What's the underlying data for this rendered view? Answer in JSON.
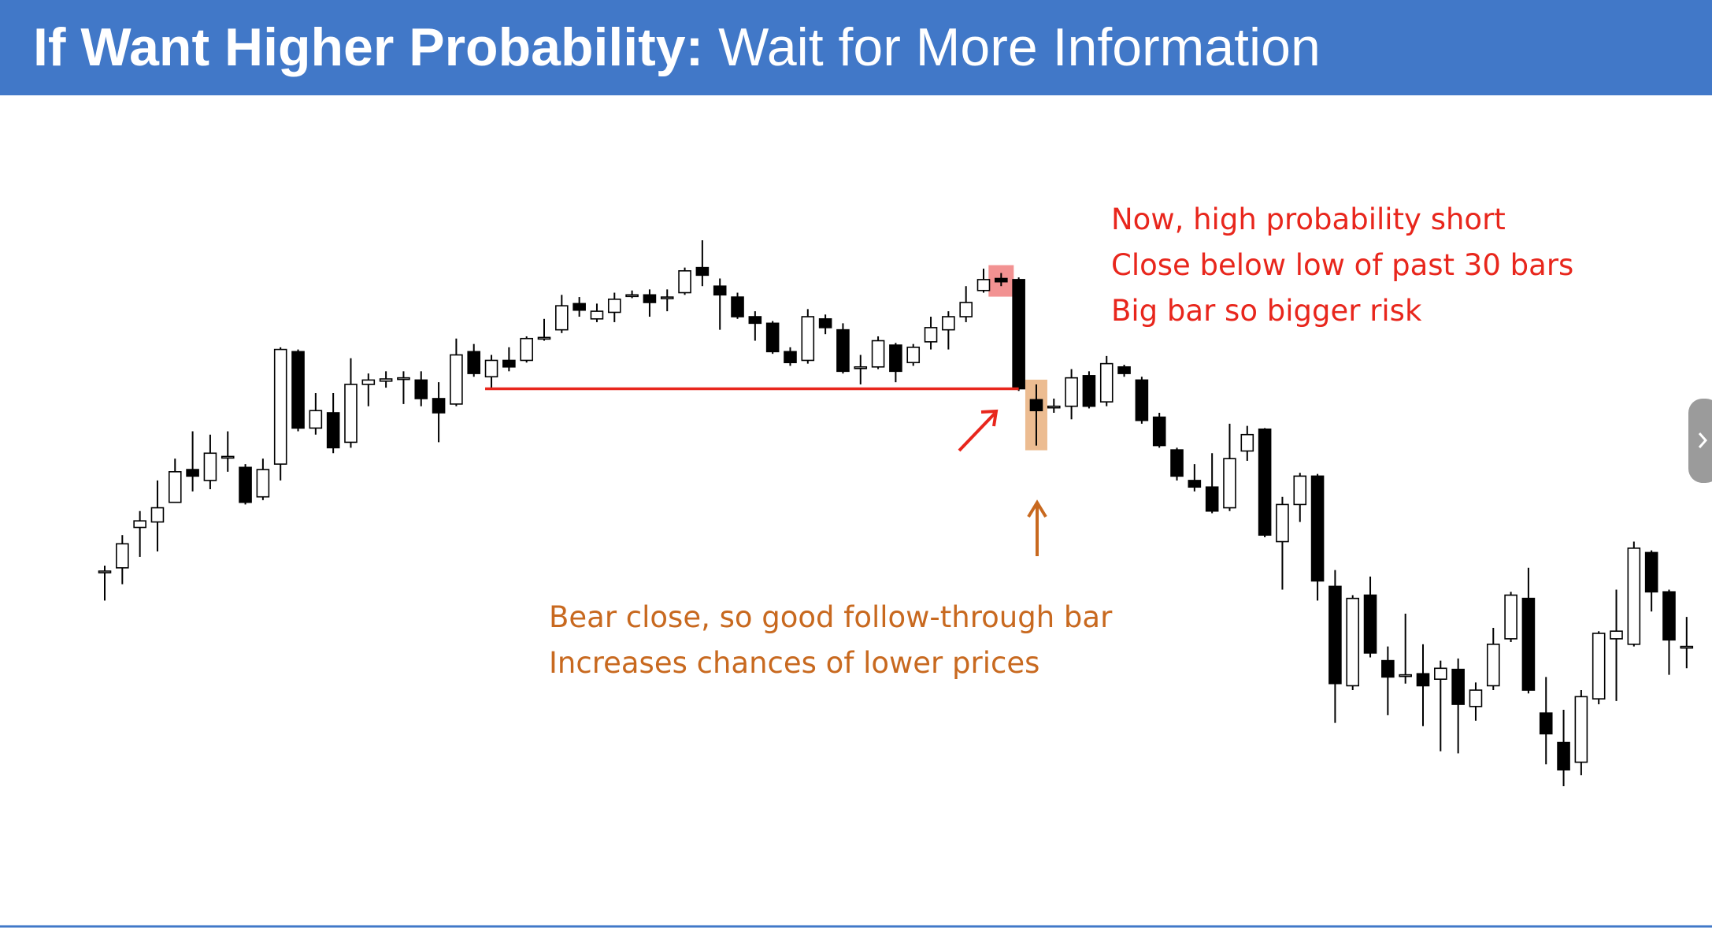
{
  "header": {
    "title_bold": "If Want Higher Probability:",
    "title_rest": "Wait for More Information"
  },
  "chart_data": {
    "type": "candlestick",
    "up_color": "#ffffff",
    "down_color": "#000000",
    "open": [
      277,
      280,
      317,
      322,
      340,
      370,
      360,
      382,
      372,
      345,
      375,
      478,
      408,
      422,
      395,
      448,
      451,
      454,
      452,
      435,
      430,
      478,
      455,
      470,
      470,
      490,
      498,
      522,
      508,
      514,
      530,
      530,
      528,
      532,
      555,
      538,
      528,
      510,
      504,
      478,
      470,
      508,
      498,
      464,
      464,
      484,
      468,
      487,
      498,
      510,
      534,
      545,
      544,
      434,
      428,
      428,
      456,
      432,
      464,
      452,
      418,
      388,
      360,
      354,
      335,
      387,
      407,
      304,
      338,
      364,
      263,
      172,
      255,
      195,
      182,
      183,
      178,
      187,
      153,
      172,
      215,
      252,
      147,
      120,
      102,
      160,
      215,
      210,
      294,
      258,
      208
    ],
    "high": [
      282,
      310,
      332,
      360,
      380,
      405,
      402,
      405,
      375,
      380,
      482,
      480,
      440,
      440,
      472,
      458,
      460,
      460,
      460,
      450,
      490,
      485,
      475,
      482,
      492,
      508,
      530,
      528,
      522,
      532,
      534,
      535,
      535,
      555,
      580,
      545,
      532,
      515,
      506,
      482,
      517,
      512,
      504,
      475,
      492,
      486,
      485,
      510,
      515,
      538,
      554,
      550,
      546,
      448,
      435,
      462,
      460,
      474,
      466,
      455,
      422,
      390,
      375,
      385,
      412,
      410,
      408,
      345,
      367,
      366,
      278,
      255,
      272,
      208,
      238,
      210,
      195,
      197,
      175,
      225,
      258,
      280,
      180,
      150,
      168,
      222,
      260,
      304,
      296,
      260,
      235
    ],
    "low": [
      250,
      265,
      290,
      295,
      340,
      350,
      352,
      368,
      338,
      342,
      360,
      405,
      402,
      385,
      390,
      428,
      445,
      430,
      428,
      395,
      428,
      455,
      445,
      460,
      468,
      488,
      495,
      510,
      505,
      505,
      527,
      510,
      515,
      530,
      538,
      498,
      508,
      488,
      476,
      465,
      467,
      494,
      458,
      448,
      462,
      450,
      465,
      480,
      480,
      505,
      532,
      538,
      442,
      392,
      422,
      416,
      426,
      428,
      455,
      412,
      390,
      360,
      350,
      330,
      332,
      378,
      308,
      260,
      322,
      250,
      138,
      168,
      198,
      145,
      174,
      135,
      112,
      110,
      140,
      168,
      212,
      165,
      100,
      80,
      90,
      155,
      158,
      208,
      240,
      182,
      188
    ],
    "close": [
      277,
      302,
      323,
      335,
      368,
      364,
      385,
      382,
      340,
      370,
      480,
      408,
      424,
      390,
      448,
      452,
      453,
      454,
      435,
      422,
      475,
      458,
      470,
      464,
      490,
      491,
      520,
      516,
      515,
      526,
      530,
      523,
      528,
      552,
      548,
      530,
      510,
      504,
      478,
      468,
      510,
      500,
      460,
      464,
      488,
      460,
      482,
      500,
      510,
      523,
      544,
      542,
      444,
      424,
      428,
      454,
      428,
      467,
      458,
      415,
      392,
      364,
      354,
      332,
      380,
      402,
      310,
      338,
      364,
      268,
      174,
      252,
      202,
      180,
      182,
      172,
      188,
      155,
      168,
      210,
      255,
      168,
      128,
      95,
      162,
      220,
      222,
      298,
      258,
      214,
      208
    ],
    "line_color": "#e8261c",
    "highlight_colors": [
      "#f07f7f",
      "#e9b07e"
    ],
    "annotations_red": [
      "Now, high probability short",
      "Close below low of past 30 bars",
      "Big bar so bigger risk"
    ],
    "annotations_orange": [
      "Bear close, so good follow-through bar",
      "Increases chances of lower prices"
    ]
  }
}
